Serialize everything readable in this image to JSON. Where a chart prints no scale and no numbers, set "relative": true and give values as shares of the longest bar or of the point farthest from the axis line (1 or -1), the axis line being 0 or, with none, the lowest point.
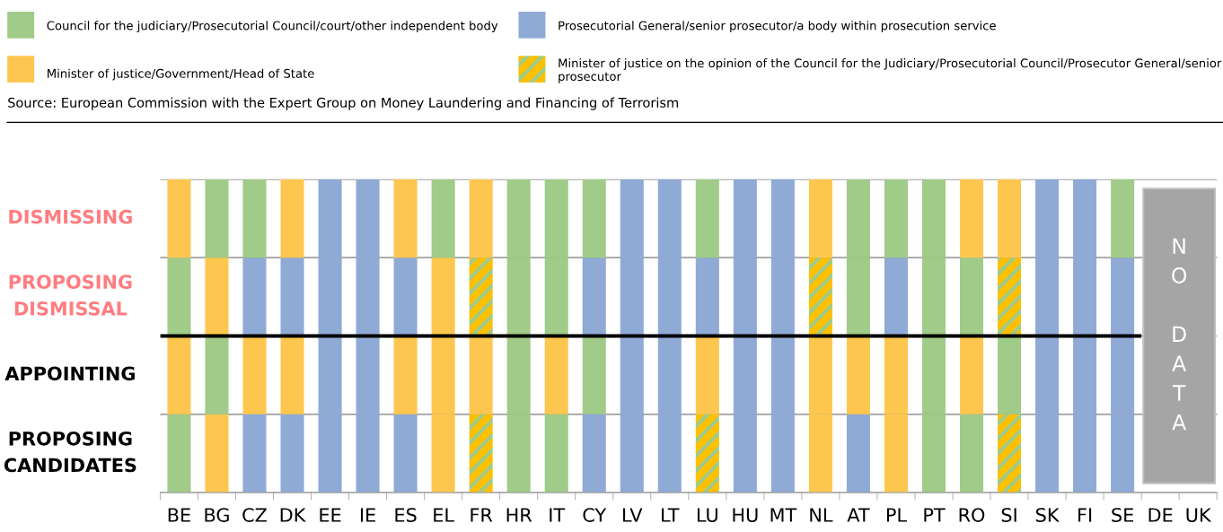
{
  "chart_data": {
    "type": "bar",
    "stacked": true,
    "relative": true,
    "grid": "y",
    "categories": [
      "BE",
      "BG",
      "CZ",
      "DK",
      "EE",
      "IE",
      "ES",
      "EL",
      "FR",
      "HR",
      "IT",
      "CY",
      "LV",
      "LT",
      "LU",
      "HU",
      "MT",
      "NL",
      "AT",
      "PL",
      "PT",
      "RO",
      "SI",
      "SK",
      "FI",
      "SE",
      "DE",
      "UK"
    ],
    "series": [
      {
        "name": "PROPOSING\nCANDIDATES",
        "values": [
          0.25,
          0.25,
          0.25,
          0.25,
          0.25,
          0.25,
          0.25,
          0.25,
          0.25,
          0.25,
          0.25,
          0.25,
          0.25,
          0.25,
          0.25,
          0.25,
          0.25,
          0.25,
          0.25,
          0.25,
          0.25,
          0.25,
          0.25,
          0.25,
          0.25,
          0.25,
          null,
          null
        ],
        "colors": [
          "#a0cb88",
          "#fdc74f",
          "#8faad5",
          "#8faad5",
          "#8faad5",
          "#8faad5",
          "#8faad5",
          "#fdc74f",
          "#ffc000",
          "#a0cb88",
          "#a0cb88",
          "#8faad5",
          "#8faad5",
          "#8faad5",
          "#ffc000",
          "#8faad5",
          "#8faad5",
          "#fdc74f",
          "#8faad5",
          "#fdc74f",
          "#a0cb88",
          "#a0cb88",
          "#ffc000",
          "#8faad5",
          "#8faad5",
          "#8faad5",
          "#8faad5",
          "#8faad5"
        ]
      },
      {
        "name": "APPOINTING",
        "values": [
          0.25,
          0.25,
          0.25,
          0.25,
          0.25,
          0.25,
          0.25,
          0.25,
          0.25,
          0.25,
          0.25,
          0.25,
          0.25,
          0.25,
          0.25,
          0.25,
          0.25,
          0.25,
          0.25,
          0.25,
          0.25,
          0.25,
          0.25,
          0.25,
          0.25,
          0.25,
          null,
          null
        ],
        "colors": [
          "#fdc74f",
          "#a0cb88",
          "#fdc74f",
          "#fdc74f",
          "#8faad5",
          "#8faad5",
          "#fdc74f",
          "#fdc74f",
          "#fdc74f",
          "#a0cb88",
          "#fdc74f",
          "#a0cb88",
          "#8faad5",
          "#8faad5",
          "#fdc74f",
          "#8faad5",
          "#8faad5",
          "#fdc74f",
          "#fdc74f",
          "#fdc74f",
          "#a0cb88",
          "#fdc74f",
          "#a0cb88",
          "#8faad5",
          "#8faad5",
          "#8faad5",
          "#8faad5",
          "#8faad5"
        ]
      },
      {
        "name": "PROPOSING\nDISMISSAL",
        "values": [
          0.25,
          0.25,
          0.25,
          0.25,
          0.25,
          0.25,
          0.25,
          0.25,
          0.25,
          0.25,
          0.25,
          0.25,
          0.25,
          0.25,
          0.25,
          0.25,
          0.25,
          0.25,
          0.25,
          0.25,
          0.25,
          0.25,
          0.25,
          0.25,
          0.25,
          0.25,
          null,
          null
        ],
        "colors": [
          "#a0cb88",
          "#fdc74f",
          "#8faad5",
          "#8faad5",
          "#8faad5",
          "#8faad5",
          "#8faad5",
          "#fdc74f",
          "#ffc000",
          "#a0cb88",
          "#a0cb88",
          "#8faad5",
          "#8faad5",
          "#8faad5",
          "#8faad5",
          "#8faad5",
          "#8faad5",
          "#ffc000",
          "#a0cb88",
          "#8faad5",
          "#a0cb88",
          "#a0cb88",
          "#ffc000",
          "#8faad5",
          "#8faad5",
          "#8faad5",
          "#8faad5",
          "#8faad5"
        ]
      },
      {
        "name": "DISMISSING",
        "values": [
          0.25,
          0.25,
          0.25,
          0.25,
          0.25,
          0.25,
          0.25,
          0.25,
          0.25,
          0.25,
          0.25,
          0.25,
          0.25,
          0.25,
          0.25,
          0.25,
          0.25,
          0.25,
          0.25,
          0.25,
          0.25,
          0.25,
          0.25,
          0.25,
          0.25,
          0.25,
          null,
          null
        ],
        "colors": [
          "#fdc74f",
          "#a0cb88",
          "#a0cb88",
          "#fdc74f",
          "#8faad5",
          "#8faad5",
          "#fdc74f",
          "#a0cb88",
          "#fdc74f",
          "#a0cb88",
          "#a0cb88",
          "#a0cb88",
          "#8faad5",
          "#8faad5",
          "#a0cb88",
          "#8faad5",
          "#8faad5",
          "#fdc74f",
          "#a0cb88",
          "#a0cb88",
          "#a0cb88",
          "#fdc74f",
          "#fdc74f",
          "#8faad5",
          "#8faad5",
          "#a0cb88",
          "#8faad5",
          "#8faad5"
        ]
      }
    ],
    "ref_lines": [
      {
        "axis": "y",
        "value": 0.5,
        "color": "#000000",
        "line_style": "solid"
      }
    ],
    "annotations": [
      "Council for the judiciary/Prosecutorial Council/court/other independent body",
      "Minister of justice/Government/Head of State",
      "Prosecutorial General/senior prosecutor/a body within prosecution service",
      "Minister of justice on the opinion of the Council for the Judiciary/Prosecutorial Council/Prosecutor General/senior prosecutor",
      "Source: European Commission with the Expert Group on Money Laundering and Financing of Terrorism",
      "NO DATA"
    ]
  }
}
